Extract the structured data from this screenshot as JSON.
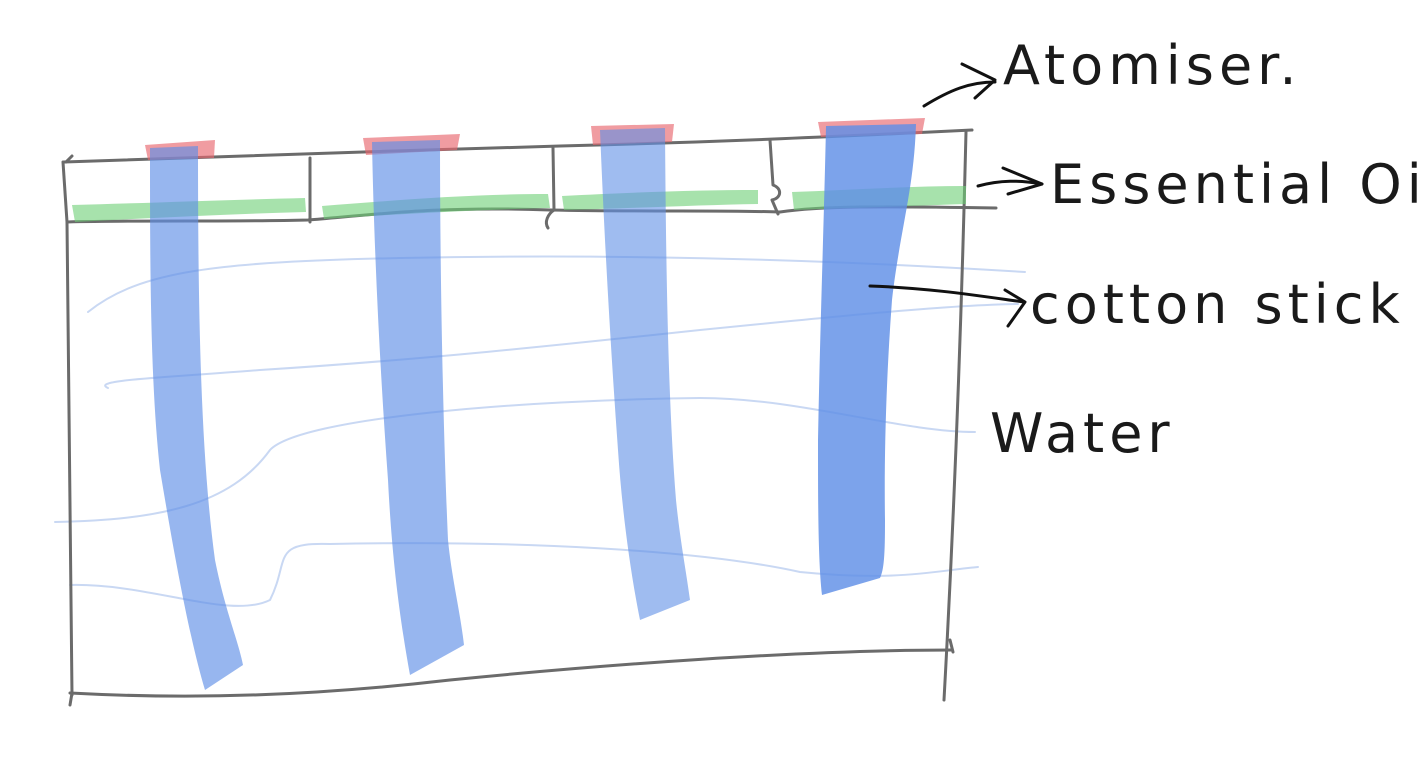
{
  "labels": {
    "atomiser": "Atomiser.",
    "essential_oil": "Essential Oil.",
    "cotton_stick": "cotton stick",
    "water": "Water"
  },
  "colors": {
    "atomiser": "#e8676e",
    "essential_oil": "#6ccf74",
    "cotton_stick": "#5f8fe6",
    "water_wave": "#c9d8f3",
    "outline": "#6b6b6b",
    "ink": "#111111"
  },
  "sticks": [
    {
      "id": "stick-1"
    },
    {
      "id": "stick-2"
    },
    {
      "id": "stick-3"
    },
    {
      "id": "stick-4"
    }
  ]
}
